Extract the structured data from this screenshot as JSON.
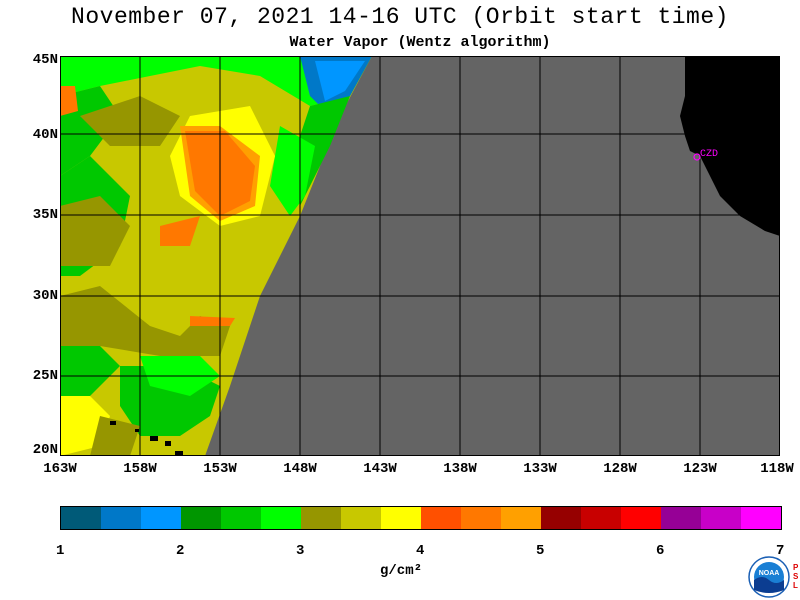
{
  "title": "November 07, 2021  14-16 UTC  (Orbit start time)",
  "subtitle": "Water Vapor (Wentz algorithm)",
  "map": {
    "lat_labels": [
      "45N",
      "40N",
      "35N",
      "30N",
      "25N",
      "20N"
    ],
    "lon_labels": [
      "163W",
      "158W",
      "153W",
      "148W",
      "143W",
      "138W",
      "133W",
      "128W",
      "123W",
      "118W"
    ],
    "station_label": "CZD",
    "land_color": "#000000",
    "nodata_color": "#646464",
    "station_color": "#ff00ff"
  },
  "colorbar": {
    "ticks": [
      "1",
      "2",
      "3",
      "4",
      "5",
      "6",
      "7"
    ],
    "units": "g/cm²",
    "colors": [
      "#005a78",
      "#0078c8",
      "#0096ff",
      "#009600",
      "#00c800",
      "#00ff00",
      "#969600",
      "#c8c800",
      "#ffff00",
      "#ff5000",
      "#ff7800",
      "#ffa000",
      "#960000",
      "#c80000",
      "#ff0000",
      "#960096",
      "#c800c8",
      "#ff00ff"
    ]
  },
  "logo": {
    "text": "NOAA",
    "side_text": "PSL"
  }
}
